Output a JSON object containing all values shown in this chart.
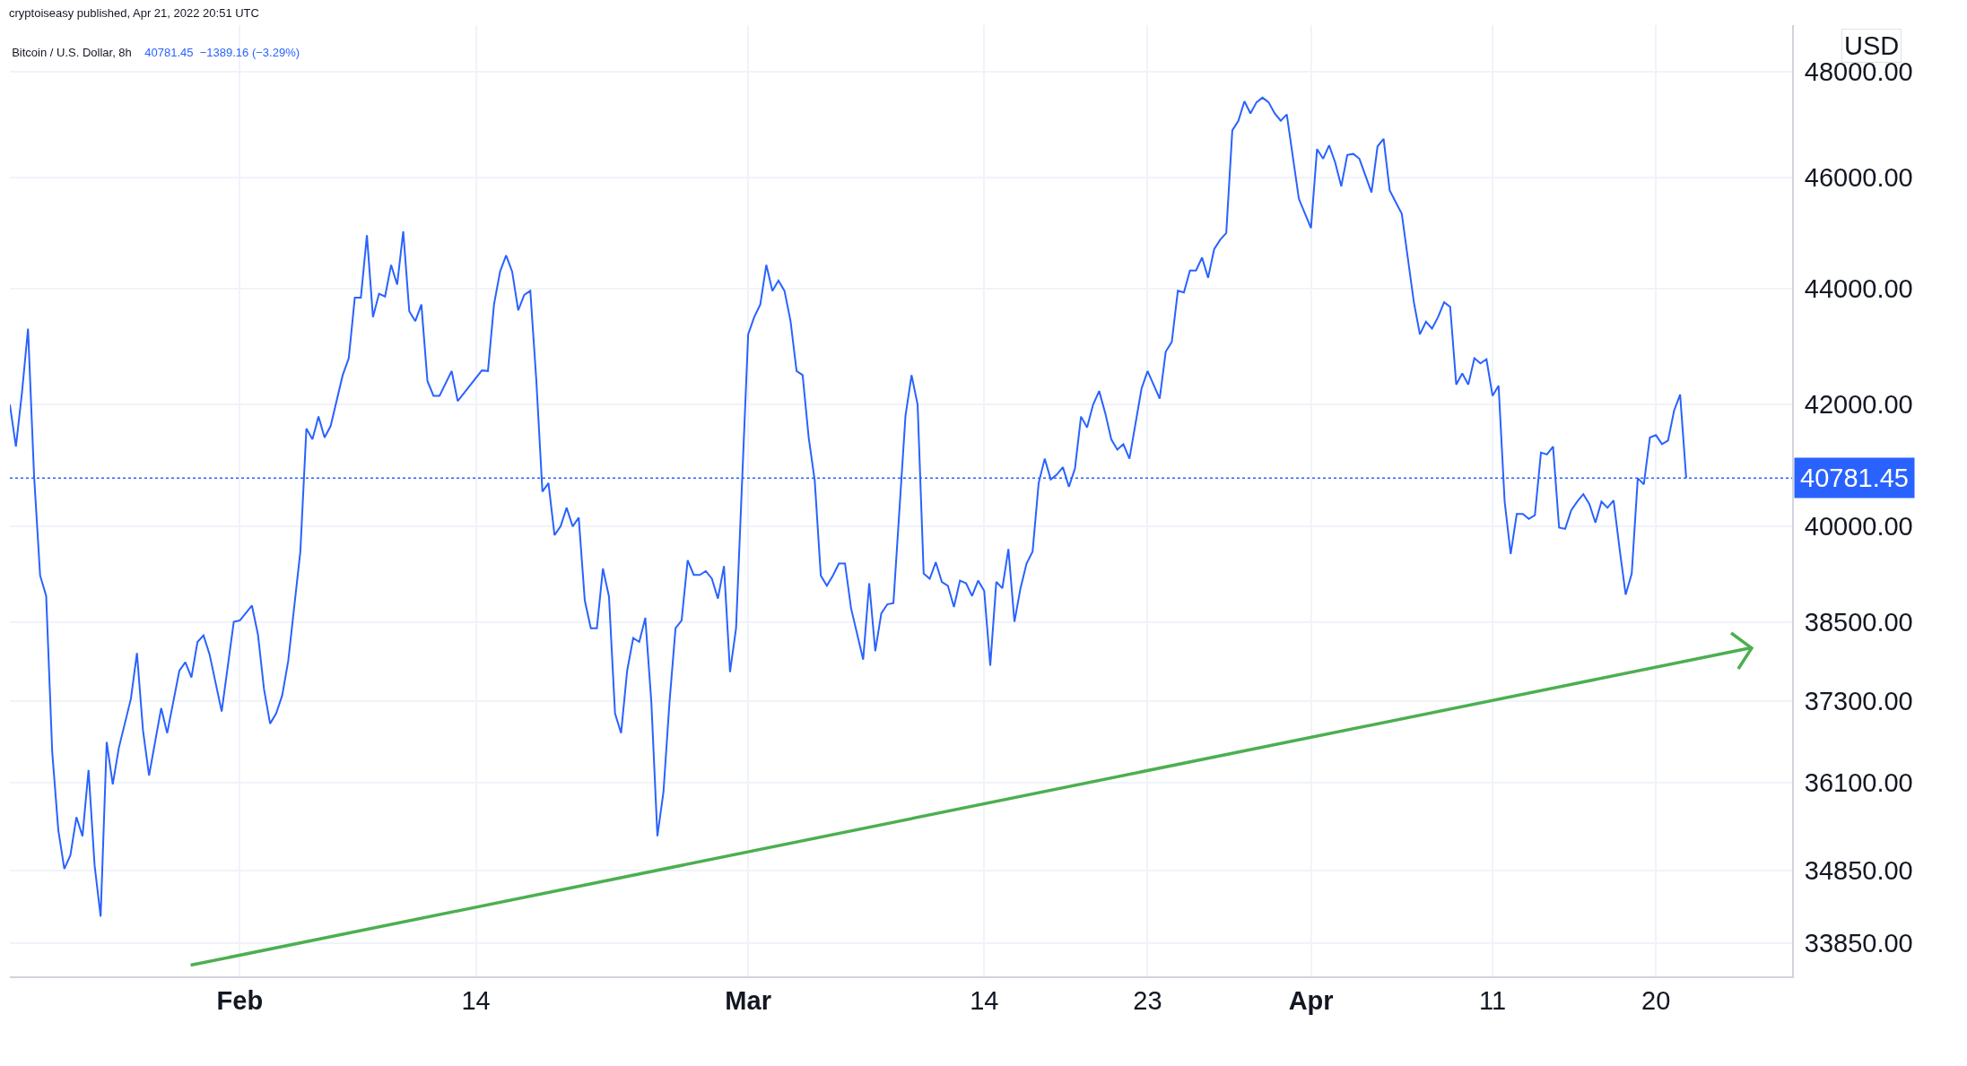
{
  "chart_data": {
    "type": "line",
    "title": "Bitcoin / U.S. Dollar, 8h",
    "subtitle": "40781.45  −1389.16 (−3.29%)",
    "ylabel": "USD",
    "annotations": [
      "cryptoiseasy published, Apr 21, 2022 20:51 UTC"
    ],
    "log": "y",
    "grid": true,
    "line_style": "solid",
    "marker": "none",
    "xlim": [
      "2022-01-19T08:00",
      "2022-04-27T12:00"
    ],
    "xticks": [
      {
        "value": "2022-02-01",
        "label": "Feb"
      },
      {
        "value": "2022-02-14",
        "label": "14"
      },
      {
        "value": "2022-03-01",
        "label": "Mar"
      },
      {
        "value": "2022-03-14",
        "label": "14"
      },
      {
        "value": "2022-03-23",
        "label": "23"
      },
      {
        "value": "2022-04-01",
        "label": "Apr"
      },
      {
        "value": "2022-04-11",
        "label": "11"
      },
      {
        "value": "2022-04-20",
        "label": "20"
      }
    ],
    "ylim": [
      33400,
      48900
    ],
    "yticks": [
      {
        "value": 33850,
        "label": "33850.00"
      },
      {
        "value": 34850,
        "label": "34850.00"
      },
      {
        "value": 36100,
        "label": "36100.00"
      },
      {
        "value": 37300,
        "label": "37300.00"
      },
      {
        "value": 38500,
        "label": "38500.00"
      },
      {
        "value": 40000,
        "label": "40000.00"
      },
      {
        "value": 42000,
        "label": "42000.00"
      },
      {
        "value": 44000,
        "label": "44000.00"
      },
      {
        "value": 46000,
        "label": "46000.00"
      },
      {
        "value": 48000,
        "label": "48000.00"
      }
    ],
    "ref_lines": [
      {
        "axis": "y",
        "value": 40781.45,
        "label": "40781.45",
        "color": "#2962ff",
        "line_style": "dotted"
      }
    ],
    "series": [
      {
        "color": "#2962ff",
        "x": [
          "2022-01-19T08:00",
          "2022-01-19T16:00",
          "2022-01-20T00:00",
          "2022-01-20T08:00",
          "2022-01-20T16:00",
          "2022-01-21T00:00",
          "2022-01-21T08:00",
          "2022-01-21T16:00",
          "2022-01-22T00:00",
          "2022-01-22T08:00",
          "2022-01-22T16:00",
          "2022-01-23T00:00",
          "2022-01-23T08:00",
          "2022-01-23T16:00",
          "2022-01-24T00:00",
          "2022-01-24T08:00",
          "2022-01-24T16:00",
          "2022-01-25T00:00",
          "2022-01-25T08:00",
          "2022-01-26T00:00",
          "2022-01-26T08:00",
          "2022-01-26T16:00",
          "2022-01-27T00:00",
          "2022-01-27T16:00",
          "2022-01-28T00:00",
          "2022-01-28T16:00",
          "2022-01-29T00:00",
          "2022-01-29T08:00",
          "2022-01-29T16:00",
          "2022-01-30T00:00",
          "2022-01-30T08:00",
          "2022-01-31T00:00",
          "2022-01-31T16:00",
          "2022-02-01T00:00",
          "2022-02-01T16:00",
          "2022-02-02T00:00",
          "2022-02-02T08:00",
          "2022-02-02T16:00",
          "2022-02-03T00:00",
          "2022-02-03T08:00",
          "2022-02-03T16:00",
          "2022-02-04T08:00",
          "2022-02-04T16:00",
          "2022-02-05T00:00",
          "2022-02-05T08:00",
          "2022-02-05T16:00",
          "2022-02-06T00:00",
          "2022-02-06T16:00",
          "2022-02-07T00:00",
          "2022-02-07T08:00",
          "2022-02-07T16:00",
          "2022-02-08T00:00",
          "2022-02-08T08:00",
          "2022-02-08T16:00",
          "2022-02-09T00:00",
          "2022-02-09T08:00",
          "2022-02-09T16:00",
          "2022-02-10T00:00",
          "2022-02-10T08:00",
          "2022-02-10T16:00",
          "2022-02-11T00:00",
          "2022-02-11T08:00",
          "2022-02-11T16:00",
          "2022-02-12T00:00",
          "2022-02-12T16:00",
          "2022-02-13T00:00",
          "2022-02-14T08:00",
          "2022-02-14T16:00",
          "2022-02-15T00:00",
          "2022-02-15T08:00",
          "2022-02-15T16:00",
          "2022-02-16T00:00",
          "2022-02-16T08:00",
          "2022-02-16T16:00",
          "2022-02-17T00:00",
          "2022-02-17T08:00",
          "2022-02-17T16:00",
          "2022-02-18T00:00",
          "2022-02-18T08:00",
          "2022-02-18T16:00",
          "2022-02-19T00:00",
          "2022-02-19T08:00",
          "2022-02-19T16:00",
          "2022-02-20T00:00",
          "2022-02-20T08:00",
          "2022-02-20T16:00",
          "2022-02-21T00:00",
          "2022-02-21T08:00",
          "2022-02-21T16:00",
          "2022-02-22T00:00",
          "2022-02-22T08:00",
          "2022-02-22T16:00",
          "2022-02-23T00:00",
          "2022-02-23T08:00",
          "2022-02-23T16:00",
          "2022-02-24T00:00",
          "2022-02-24T08:00",
          "2022-02-24T16:00",
          "2022-02-25T00:00",
          "2022-02-25T08:00",
          "2022-02-25T16:00",
          "2022-02-26T00:00",
          "2022-02-26T08:00",
          "2022-02-26T16:00",
          "2022-02-27T00:00",
          "2022-02-27T08:00",
          "2022-02-27T16:00",
          "2022-02-28T00:00",
          "2022-02-28T08:00",
          "2022-02-28T16:00",
          "2022-03-01T00:00",
          "2022-03-01T08:00",
          "2022-03-01T16:00",
          "2022-03-02T00:00",
          "2022-03-02T08:00",
          "2022-03-02T16:00",
          "2022-03-03T00:00",
          "2022-03-03T08:00",
          "2022-03-03T16:00",
          "2022-03-04T00:00",
          "2022-03-04T08:00",
          "2022-03-04T16:00",
          "2022-03-05T00:00",
          "2022-03-05T08:00",
          "2022-03-05T16:00",
          "2022-03-06T00:00",
          "2022-03-06T08:00",
          "2022-03-06T16:00",
          "2022-03-07T08:00",
          "2022-03-07T16:00",
          "2022-03-08T00:00",
          "2022-03-08T08:00",
          "2022-03-08T16:00",
          "2022-03-09T00:00",
          "2022-03-09T16:00",
          "2022-03-10T00:00",
          "2022-03-10T08:00",
          "2022-03-10T16:00",
          "2022-03-11T00:00",
          "2022-03-11T08:00",
          "2022-03-11T16:00",
          "2022-03-12T00:00",
          "2022-03-12T08:00",
          "2022-03-12T16:00",
          "2022-03-13T00:00",
          "2022-03-13T08:00",
          "2022-03-13T16:00",
          "2022-03-14T00:00",
          "2022-03-14T08:00",
          "2022-03-14T16:00",
          "2022-03-15T00:00",
          "2022-03-15T08:00",
          "2022-03-15T16:00",
          "2022-03-16T00:00",
          "2022-03-16T08:00",
          "2022-03-16T16:00",
          "2022-03-17T00:00",
          "2022-03-17T08:00",
          "2022-03-17T16:00",
          "2022-03-18T00:00",
          "2022-03-18T08:00",
          "2022-03-18T16:00",
          "2022-03-19T00:00",
          "2022-03-19T08:00",
          "2022-03-19T16:00",
          "2022-03-20T00:00",
          "2022-03-20T08:00",
          "2022-03-20T16:00",
          "2022-03-21T00:00",
          "2022-03-21T08:00",
          "2022-03-21T16:00",
          "2022-03-22T00:00",
          "2022-03-22T16:00",
          "2022-03-23T00:00",
          "2022-03-23T16:00",
          "2022-03-24T00:00",
          "2022-03-24T08:00",
          "2022-03-24T16:00",
          "2022-03-25T00:00",
          "2022-03-25T08:00",
          "2022-03-25T16:00",
          "2022-03-26T00:00",
          "2022-03-26T08:00",
          "2022-03-26T16:00",
          "2022-03-27T00:00",
          "2022-03-27T08:00",
          "2022-03-27T16:00",
          "2022-03-28T00:00",
          "2022-03-28T08:00",
          "2022-03-28T16:00",
          "2022-03-29T00:00",
          "2022-03-29T08:00",
          "2022-03-29T16:00",
          "2022-03-30T00:00",
          "2022-03-30T08:00",
          "2022-03-30T16:00",
          "2022-03-31T08:00",
          "2022-04-01T00:00",
          "2022-04-01T08:00",
          "2022-04-01T16:00",
          "2022-04-02T00:00",
          "2022-04-02T08:00",
          "2022-04-02T16:00",
          "2022-04-03T00:00",
          "2022-04-03T08:00",
          "2022-04-03T16:00",
          "2022-04-04T08:00",
          "2022-04-04T16:00",
          "2022-04-05T00:00",
          "2022-04-05T08:00",
          "2022-04-05T16:00",
          "2022-04-06T00:00",
          "2022-04-06T16:00",
          "2022-04-07T00:00",
          "2022-04-07T08:00",
          "2022-04-07T16:00",
          "2022-04-08T00:00",
          "2022-04-08T08:00",
          "2022-04-08T16:00",
          "2022-04-09T00:00",
          "2022-04-09T08:00",
          "2022-04-09T16:00",
          "2022-04-10T00:00",
          "2022-04-10T08:00",
          "2022-04-10T16:00",
          "2022-04-11T00:00",
          "2022-04-11T08:00",
          "2022-04-11T16:00",
          "2022-04-12T00:00",
          "2022-04-12T08:00",
          "2022-04-12T16:00",
          "2022-04-13T00:00",
          "2022-04-13T08:00",
          "2022-04-13T16:00",
          "2022-04-14T00:00",
          "2022-04-14T08:00",
          "2022-04-14T16:00",
          "2022-04-15T00:00",
          "2022-04-15T08:00",
          "2022-04-15T16:00",
          "2022-04-16T00:00",
          "2022-04-16T08:00",
          "2022-04-16T16:00",
          "2022-04-17T00:00",
          "2022-04-17T08:00",
          "2022-04-17T16:00",
          "2022-04-18T00:00",
          "2022-04-18T08:00",
          "2022-04-18T16:00",
          "2022-04-19T00:00",
          "2022-04-19T08:00",
          "2022-04-19T16:00",
          "2022-04-20T00:00",
          "2022-04-20T08:00",
          "2022-04-20T16:00",
          "2022-04-21T00:00",
          "2022-04-21T08:00",
          "2022-04-21T16:00"
        ],
        "values": [
          42000,
          41300,
          42200,
          43300,
          40820,
          39220,
          38900,
          36540,
          35420,
          34870,
          35060,
          35600,
          35330,
          36280,
          34920,
          34210,
          36690,
          36070,
          36600,
          37330,
          38020,
          36860,
          36200,
          37190,
          36820,
          37750,
          37880,
          37650,
          38190,
          38290,
          38000,
          37140,
          38500,
          38520,
          38750,
          38300,
          37470,
          36960,
          37110,
          37380,
          37900,
          39600,
          41600,
          41420,
          41800,
          41450,
          41640,
          42500,
          42790,
          43840,
          43840,
          44950,
          43500,
          43910,
          43860,
          44420,
          44070,
          45020,
          43600,
          43430,
          43720,
          42400,
          42150,
          42150,
          42570,
          42060,
          42580,
          42570,
          43720,
          44300,
          44590,
          44300,
          43620,
          43890,
          43960,
          42400,
          40560,
          40700,
          39860,
          40000,
          40300,
          40000,
          40140,
          38830,
          38400,
          38400,
          39330,
          38890,
          37110,
          36820,
          37750,
          38250,
          38190,
          38560,
          37280,
          35330,
          35960,
          37280,
          38400,
          38520,
          39460,
          39230,
          39230,
          39290,
          39170,
          38860,
          39370,
          37730,
          38400,
          40740,
          43200,
          43500,
          43720,
          44420,
          43960,
          44140,
          43960,
          43430,
          42570,
          42500,
          41450,
          40740,
          39220,
          39060,
          39220,
          39410,
          39410,
          38710,
          37920,
          39100,
          38050,
          38630,
          38770,
          38790,
          41820,
          42500,
          42000,
          39250,
          39170,
          39430,
          39120,
          39060,
          38730,
          39140,
          39100,
          38900,
          39140,
          38980,
          37830,
          39120,
          39020,
          39640,
          38500,
          39020,
          39410,
          39600,
          40700,
          41100,
          40760,
          40840,
          40960,
          40640,
          40940,
          41800,
          41620,
          42000,
          42230,
          41860,
          41420,
          41250,
          41340,
          41100,
          42270,
          42570,
          42100,
          42900,
          43070,
          43960,
          43930,
          44320,
          44320,
          44550,
          44190,
          44700,
          44870,
          44990,
          46880,
          47060,
          47430,
          47200,
          47410,
          47500,
          47410,
          47200,
          47060,
          47180,
          45610,
          45080,
          46530,
          46350,
          46600,
          46280,
          45840,
          46420,
          46440,
          46350,
          45730,
          46580,
          46720,
          45770,
          45550,
          45340,
          43760,
          43200,
          43420,
          43300,
          43500,
          43760,
          43680,
          42340,
          42530,
          42340,
          42790,
          42700,
          42770,
          42150,
          42320,
          40400,
          39560,
          40200,
          40200,
          40120,
          40180,
          41200,
          41170,
          41300,
          39980,
          39960,
          40260,
          40400,
          40520,
          40360,
          40060,
          40400,
          40300,
          40420,
          39640,
          38920,
          39250,
          40780,
          40680,
          41450,
          41490,
          41340,
          41400,
          41900,
          42170,
          40781.45
        ]
      },
      {
        "color": "#4caf50",
        "type": "line",
        "x": [
          "2022-01-29T07:00",
          "2022-04-25T06:00"
        ],
        "values": [
          33550,
          38100
        ]
      }
    ]
  }
}
